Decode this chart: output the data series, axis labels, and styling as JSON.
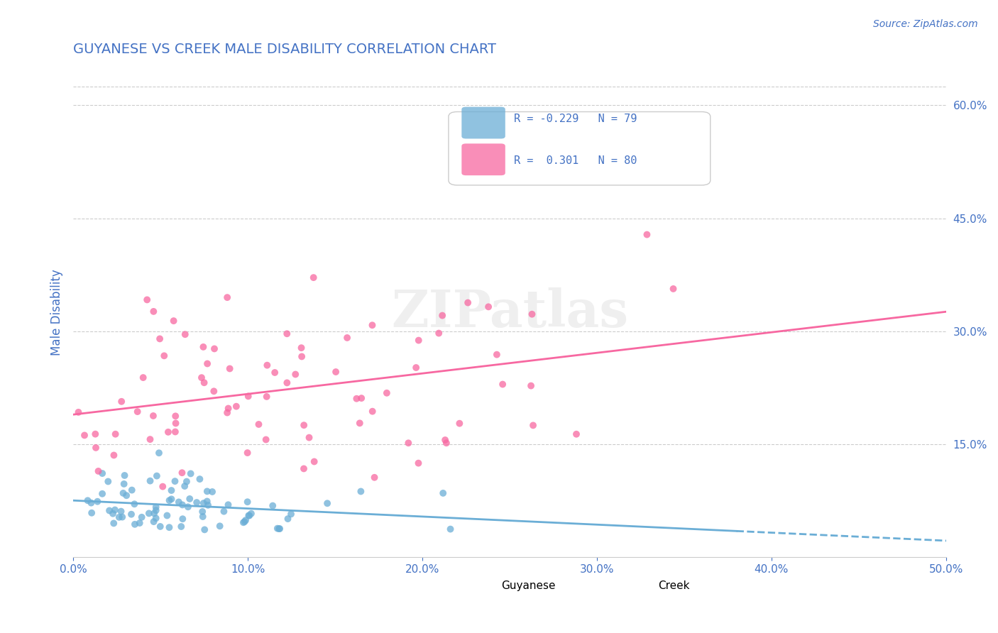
{
  "title": "GUYANESE VS CREEK MALE DISABILITY CORRELATION CHART",
  "source": "Source: ZipAtlas.com",
  "xlabel_bottom": "",
  "ylabel": "Male Disability",
  "xlim": [
    0.0,
    0.5
  ],
  "ylim": [
    0.0,
    0.65
  ],
  "xtick_labels": [
    "0.0%",
    "10.0%",
    "20.0%",
    "30.0%",
    "40.0%",
    "50.0%"
  ],
  "xtick_values": [
    0.0,
    0.1,
    0.2,
    0.3,
    0.4,
    0.5
  ],
  "ytick_labels_right": [
    "15.0%",
    "30.0%",
    "45.0%",
    "60.0%"
  ],
  "ytick_values_right": [
    0.15,
    0.3,
    0.45,
    0.6
  ],
  "guyanese_color": "#6baed6",
  "creek_color": "#f768a1",
  "guyanese_R": -0.229,
  "guyanese_N": 79,
  "creek_R": 0.301,
  "creek_N": 80,
  "watermark": "ZIPatlas",
  "legend_r1": "R = -0.229   N = 79",
  "legend_r2": "R =  0.301   N = 80",
  "background_color": "#ffffff",
  "grid_color": "#cccccc",
  "title_color": "#4472c4",
  "axis_label_color": "#4472c4",
  "tick_label_color": "#4472c4"
}
